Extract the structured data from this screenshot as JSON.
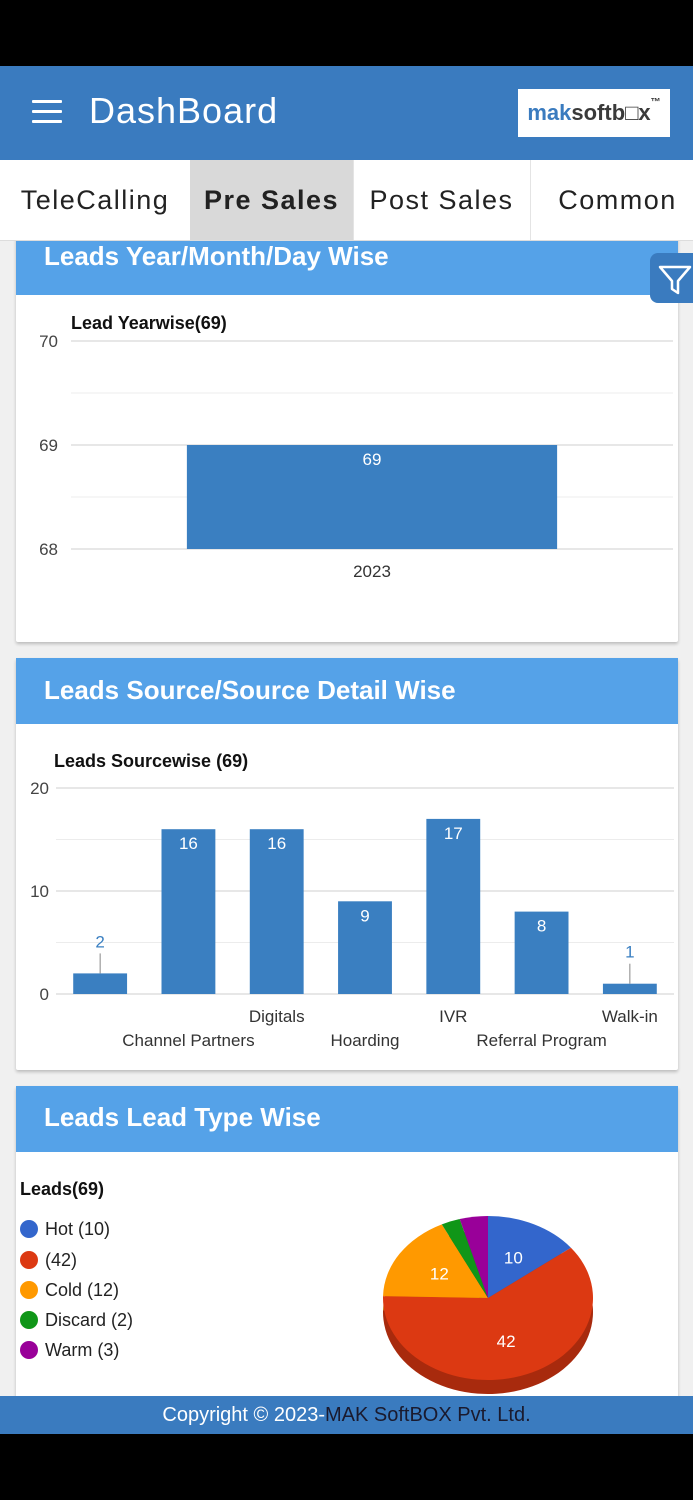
{
  "app": {
    "title": "DashBoard",
    "logo_mak": "mak",
    "logo_soft": "softb",
    "logo_box": "□x",
    "logo_tm": "™"
  },
  "tabs": [
    {
      "label": "TeleCalling"
    },
    {
      "label": "Pre Sales"
    },
    {
      "label": "Post Sales"
    },
    {
      "label": "Common"
    }
  ],
  "active_tab": "Pre Sales",
  "cards": {
    "year": {
      "header": "Leads Year/Month/Day Wise"
    },
    "source": {
      "header": "Leads Source/Source Detail Wise"
    },
    "type": {
      "header": "Leads Lead Type Wise"
    }
  },
  "chart_data": [
    {
      "type": "bar",
      "title": "Lead Yearwise(69)",
      "categories": [
        "2023"
      ],
      "values": [
        69
      ],
      "ylim": [
        68,
        70
      ],
      "yticks": [
        "70",
        "69",
        "68"
      ],
      "color": "#3a7fc1"
    },
    {
      "type": "bar",
      "title": "Leads Sourcewise (69)",
      "categories": [
        "",
        "Channel Partners",
        "Digitals",
        "Hoarding",
        "IVR",
        "Referral Program",
        "Walk-in"
      ],
      "values": [
        2,
        16,
        16,
        9,
        17,
        8,
        1
      ],
      "ylim": [
        0,
        20
      ],
      "yticks": [
        "20",
        "10",
        "0"
      ],
      "color": "#3a7fc1"
    },
    {
      "type": "pie",
      "title": "Leads(69)",
      "slices": [
        {
          "label": "Hot (10)",
          "value": 10,
          "color": "#3366cc"
        },
        {
          "label": "(42)",
          "value": 42,
          "color": "#dc3912"
        },
        {
          "label": "Cold (12)",
          "value": 12,
          "color": "#ff9900"
        },
        {
          "label": "Discard (2)",
          "value": 2,
          "color": "#109618"
        },
        {
          "label": "Warm (3)",
          "value": 3,
          "color": "#990099"
        }
      ],
      "slice_labels": [
        "10",
        "42",
        "12"
      ]
    }
  ],
  "footer": {
    "prefix": "Copyright © 2023-",
    "company": "MAK SoftBOX Pvt. Ltd."
  },
  "colors": {
    "primary": "#3a7bbf",
    "header_light": "#55a2e8",
    "bar": "#3a7fc1"
  }
}
